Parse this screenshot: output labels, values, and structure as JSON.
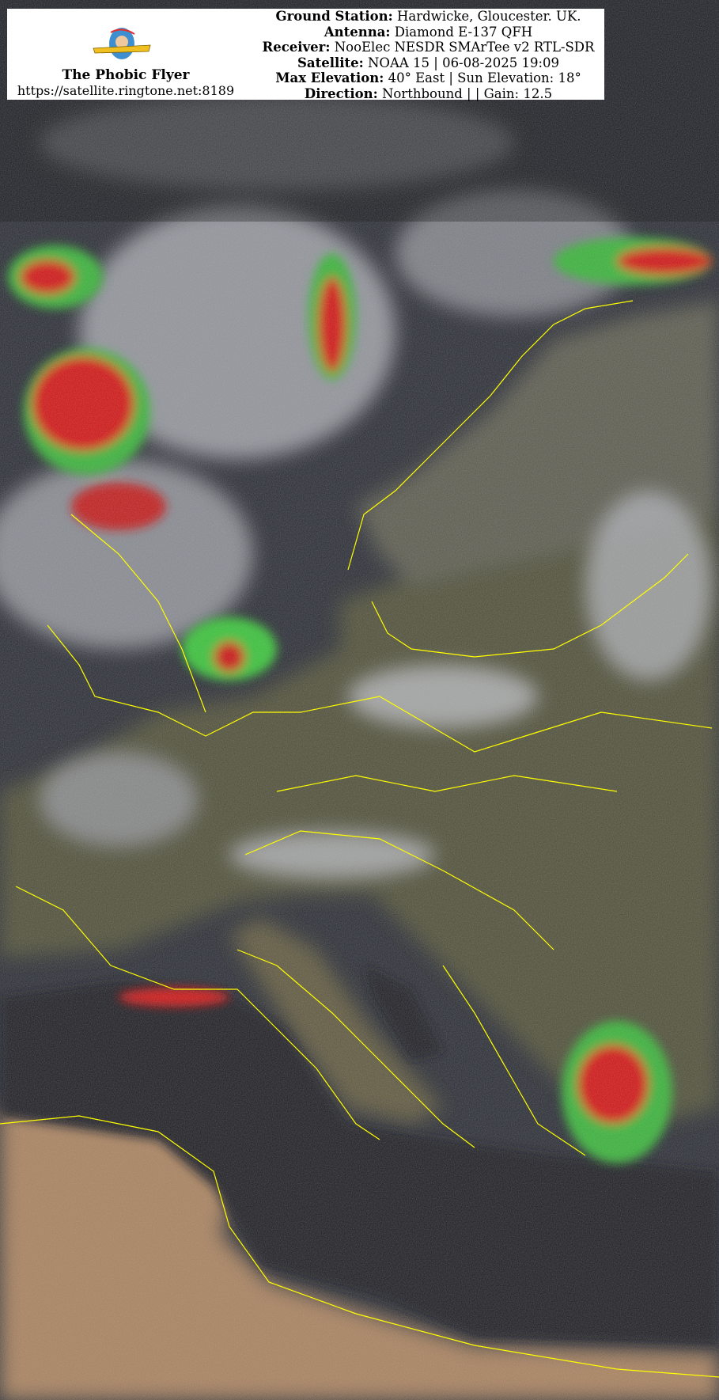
{
  "header": {
    "logo_text": "The Phobic Flyer",
    "brand_name": "The Phobic Flyer",
    "url": "https://satellite.ringtone.net:8189",
    "lines": [
      {
        "label": "Ground Station:",
        "value": " Hardwicke, Gloucester. UK."
      },
      {
        "label": "Antenna:",
        "value": " Diamond E-137 QFH"
      },
      {
        "label": "Receiver:",
        "value": " NooElec NESDR SMArTee v2 RTL-SDR"
      },
      {
        "label": "Satellite:",
        "value": " NOAA 15 | 06-08-2025 19:09"
      },
      {
        "label": "Max Elevation:",
        "value": " 40° East | Sun Elevation: 18°"
      },
      {
        "label": "Direction:",
        "value": " Northbound | | Gain: 12.5"
      }
    ]
  },
  "image": {
    "type": "NOAA APT false-color satellite image of Europe",
    "colors": {
      "coastline": "#ffff00",
      "sea": "#14161f",
      "land": "#4a4b32",
      "desert": "#a8805a",
      "cloud": "#b4b6bc",
      "precip_red": "#d01010",
      "precip_green": "#30c030"
    }
  }
}
